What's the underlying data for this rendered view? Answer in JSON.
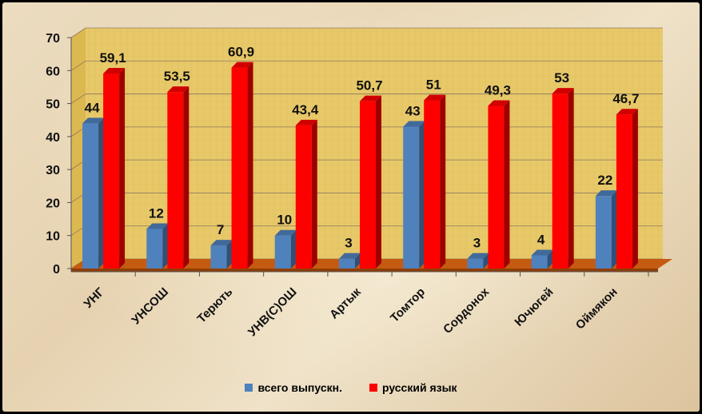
{
  "chart_data": {
    "type": "bar",
    "title": "",
    "xlabel": "",
    "ylabel": "",
    "ylim": [
      0,
      70
    ],
    "yticks": [
      0,
      10,
      20,
      30,
      40,
      50,
      60,
      70
    ],
    "grid": true,
    "legend_position": "bottom",
    "categories": [
      "УНГ",
      "УНСОШ",
      "Терють",
      "УНВ(С)ОШ",
      "Артык",
      "Томтор",
      "Сордонох",
      "Ючюгей",
      "Оймякон"
    ],
    "series": [
      {
        "name": "всего выпускн.",
        "color": "#4f81bd",
        "values": [
          44,
          12,
          7,
          10,
          3,
          43,
          3,
          4,
          22
        ],
        "labels": [
          "44",
          "12",
          "7",
          "10",
          "3",
          "43",
          "3",
          "4",
          "22"
        ]
      },
      {
        "name": "русский язык",
        "color": "#ff0000",
        "values": [
          59.1,
          53.5,
          60.9,
          43.4,
          50.7,
          51,
          49.3,
          53,
          46.7
        ],
        "labels": [
          "59,1",
          "53,5",
          "60,9",
          "43,4",
          "50,7",
          "51",
          "49,3",
          "53",
          "46,7"
        ]
      }
    ]
  },
  "legend": {
    "items": [
      {
        "label": "всего выпускн.",
        "color": "#4f81bd"
      },
      {
        "label": "русский язык",
        "color": "#ff0000"
      }
    ]
  }
}
